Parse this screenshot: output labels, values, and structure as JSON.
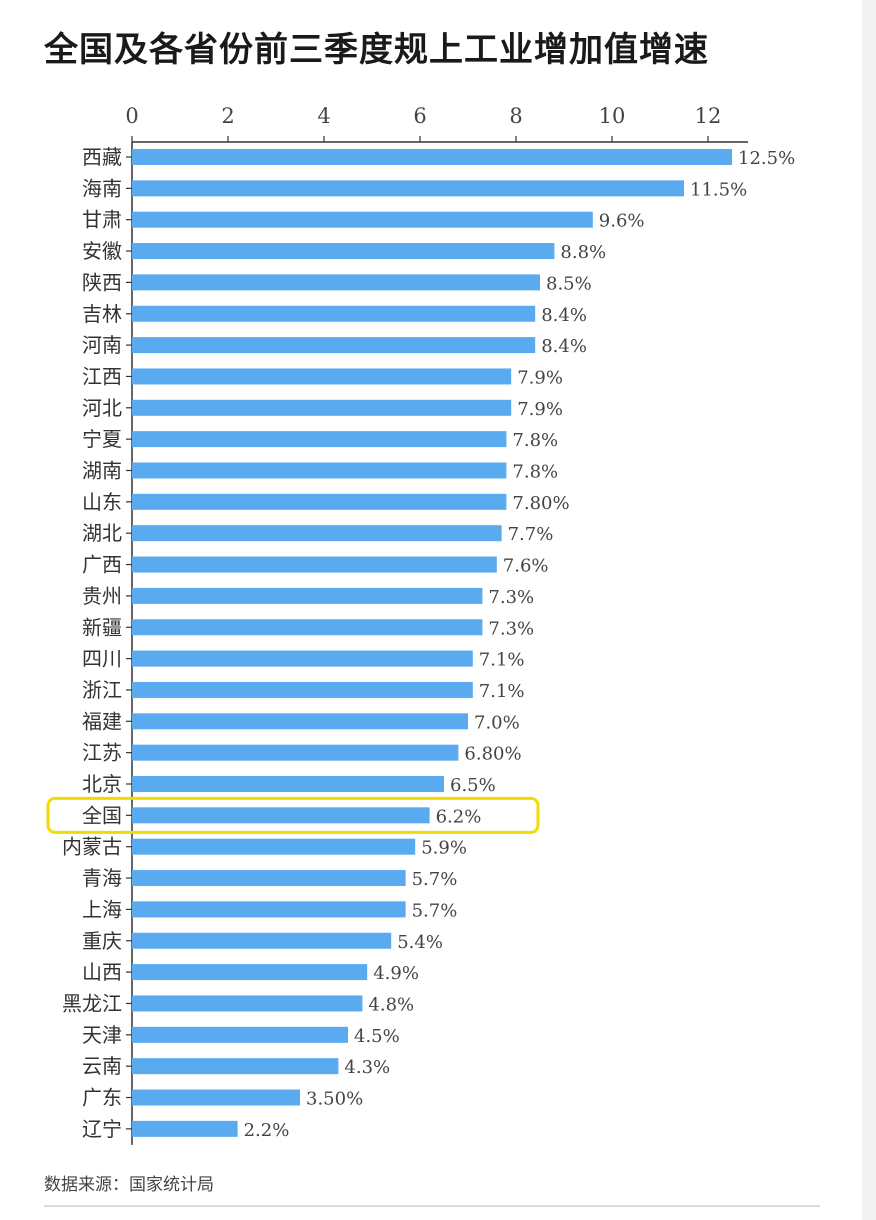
{
  "title": "全国及各省份前三季度规上工业增加值增速",
  "source": "数据来源：国家统计局",
  "colors": {
    "bar": "#5aaaf0",
    "highlight": "#f0dc00"
  },
  "chart_data": {
    "type": "bar",
    "orientation": "horizontal",
    "title": "全国及各省份前三季度规上工业增加值增速",
    "xlim": [
      0,
      13
    ],
    "xticks": [
      0,
      2,
      4,
      6,
      8,
      10,
      12
    ],
    "x_axis_position": "top",
    "grid": false,
    "highlighted_category": "全国",
    "categories": [
      "西藏",
      "海南",
      "甘肃",
      "安徽",
      "陕西",
      "吉林",
      "河南",
      "江西",
      "河北",
      "宁夏",
      "湖南",
      "山东",
      "湖北",
      "广西",
      "贵州",
      "新疆",
      "四川",
      "浙江",
      "福建",
      "江苏",
      "北京",
      "全国",
      "内蒙古",
      "青海",
      "上海",
      "重庆",
      "山西",
      "黑龙江",
      "天津",
      "云南",
      "广东",
      "辽宁"
    ],
    "values": [
      12.5,
      11.5,
      9.6,
      8.8,
      8.5,
      8.4,
      8.4,
      7.9,
      7.9,
      7.8,
      7.8,
      7.8,
      7.7,
      7.6,
      7.3,
      7.3,
      7.1,
      7.1,
      7.0,
      6.8,
      6.5,
      6.2,
      5.9,
      5.7,
      5.7,
      5.4,
      4.9,
      4.8,
      4.5,
      4.3,
      3.5,
      2.2
    ],
    "data_labels": [
      "12.5%",
      "11.5%",
      "9.6%",
      "8.8%",
      "8.5%",
      "8.4%",
      "8.4%",
      "7.9%",
      "7.9%",
      "7.8%",
      "7.8%",
      "7.80%",
      "7.7%",
      "7.6%",
      "7.3%",
      "7.3%",
      "7.1%",
      "7.1%",
      "7.0%",
      "6.80%",
      "6.5%",
      "6.2%",
      "5.9%",
      "5.7%",
      "5.7%",
      "5.4%",
      "4.9%",
      "4.8%",
      "4.5%",
      "4.3%",
      "3.50%",
      "2.2%"
    ]
  }
}
